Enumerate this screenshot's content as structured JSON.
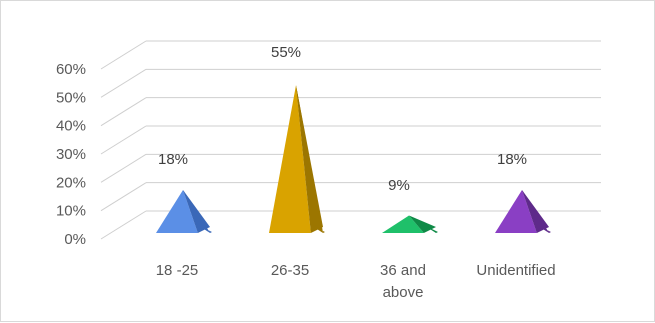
{
  "chart_data": {
    "type": "bar",
    "style": "3d-pyramid",
    "categories": [
      "18 -25",
      "26-35",
      "36 and above",
      "Unidentified"
    ],
    "category_lines": [
      [
        "18 -25"
      ],
      [
        "26-35"
      ],
      [
        "36 and",
        "above"
      ],
      [
        "Unidentified"
      ]
    ],
    "values": [
      18,
      55,
      9,
      18
    ],
    "data_labels": [
      "18%",
      "55%",
      "9%",
      "18%"
    ],
    "y_ticks": [
      "0%",
      "10%",
      "20%",
      "30%",
      "40%",
      "50%",
      "60%"
    ],
    "ylim": [
      0,
      60
    ],
    "grid": true,
    "legend": "none",
    "title": "",
    "xlabel": "",
    "ylabel": "",
    "colors": [
      {
        "front": "#5b8fe6",
        "side": "#3a68b8"
      },
      {
        "front": "#d9a300",
        "side": "#9c7600"
      },
      {
        "front": "#1fc06a",
        "side": "#0f8a47"
      },
      {
        "front": "#8a3fc4",
        "side": "#5e2a8a"
      }
    ]
  }
}
